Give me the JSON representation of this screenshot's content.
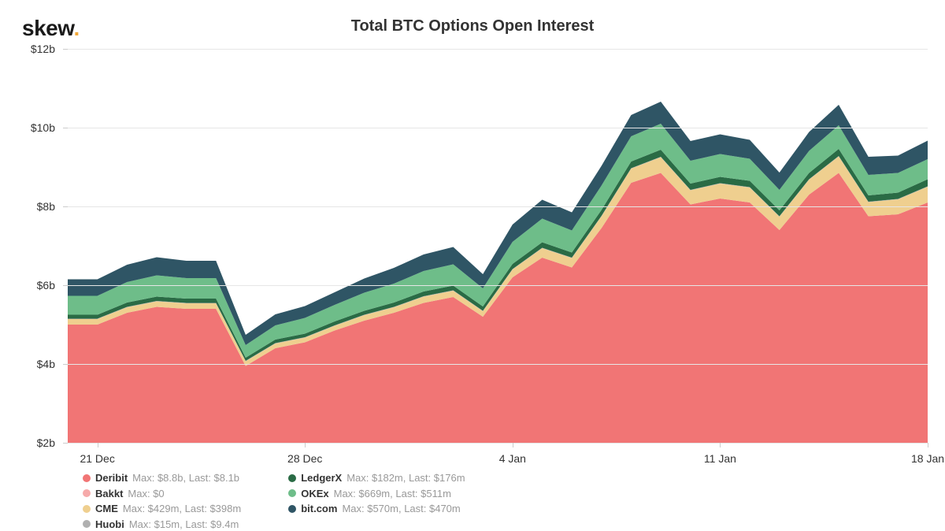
{
  "logo": {
    "text": "skew",
    "dot": "."
  },
  "title": "Total BTC Options Open Interest",
  "chart": {
    "type": "area",
    "background_color": "#ffffff",
    "grid_color": "#e6e6e6",
    "axis_font_size": 14,
    "title_font_size": 20,
    "ylim": [
      2,
      12
    ],
    "ytick_step": 2,
    "yticks": [
      {
        "value": 2,
        "label": "$2b"
      },
      {
        "value": 4,
        "label": "$4b"
      },
      {
        "value": 6,
        "label": "$6b"
      },
      {
        "value": 8,
        "label": "$8b"
      },
      {
        "value": 10,
        "label": "$10b"
      },
      {
        "value": 12,
        "label": "$12b"
      }
    ],
    "n_points": 30,
    "xticks": [
      {
        "idx": 1,
        "label": "21 Dec"
      },
      {
        "idx": 8,
        "label": "28 Dec"
      },
      {
        "idx": 15,
        "label": "4 Jan"
      },
      {
        "idx": 22,
        "label": "11 Jan"
      },
      {
        "idx": 29,
        "label": "18 Jan"
      }
    ],
    "series": [
      {
        "key": "deribit",
        "name": "Deribit",
        "color": "#f17575",
        "values": [
          5.0,
          5.0,
          5.3,
          5.45,
          5.4,
          5.4,
          3.95,
          4.4,
          4.55,
          4.85,
          5.1,
          5.3,
          5.55,
          5.7,
          5.2,
          6.2,
          6.7,
          6.45,
          7.45,
          8.6,
          8.85,
          8.05,
          8.2,
          8.1,
          7.4,
          8.3,
          8.85,
          7.75,
          7.8,
          8.1
        ]
      },
      {
        "key": "bakkt",
        "name": "Bakkt",
        "color": "#f6aaaa",
        "values": [
          0,
          0,
          0,
          0,
          0,
          0,
          0,
          0,
          0,
          0,
          0,
          0,
          0,
          0,
          0,
          0,
          0,
          0,
          0,
          0,
          0,
          0,
          0,
          0,
          0,
          0,
          0,
          0,
          0,
          0
        ]
      },
      {
        "key": "cme",
        "name": "CME",
        "color": "#efcf8f",
        "values": [
          0.14,
          0.14,
          0.14,
          0.14,
          0.14,
          0.14,
          0.12,
          0.12,
          0.12,
          0.12,
          0.14,
          0.14,
          0.16,
          0.16,
          0.14,
          0.2,
          0.24,
          0.24,
          0.3,
          0.36,
          0.4,
          0.36,
          0.38,
          0.38,
          0.34,
          0.38,
          0.42,
          0.36,
          0.38,
          0.4
        ]
      },
      {
        "key": "huobi",
        "name": "Huobi",
        "color": "#b0b0b0",
        "values": [
          0.01,
          0.01,
          0.01,
          0.01,
          0.01,
          0.01,
          0.01,
          0.01,
          0.01,
          0.01,
          0.01,
          0.01,
          0.01,
          0.01,
          0.01,
          0.01,
          0.01,
          0.01,
          0.01,
          0.01,
          0.01,
          0.01,
          0.01,
          0.01,
          0.01,
          0.01,
          0.01,
          0.01,
          0.01,
          0.01
        ]
      },
      {
        "key": "ledgerx",
        "name": "LedgerX",
        "color": "#2a6b45",
        "values": [
          0.1,
          0.1,
          0.11,
          0.11,
          0.11,
          0.11,
          0.08,
          0.09,
          0.09,
          0.1,
          0.1,
          0.11,
          0.12,
          0.12,
          0.11,
          0.13,
          0.14,
          0.13,
          0.15,
          0.17,
          0.18,
          0.16,
          0.16,
          0.16,
          0.15,
          0.16,
          0.18,
          0.16,
          0.16,
          0.18
        ]
      },
      {
        "key": "okex",
        "name": "OKEx",
        "color": "#6ebd89",
        "values": [
          0.48,
          0.48,
          0.52,
          0.54,
          0.52,
          0.52,
          0.32,
          0.36,
          0.4,
          0.42,
          0.46,
          0.48,
          0.52,
          0.54,
          0.46,
          0.56,
          0.6,
          0.56,
          0.62,
          0.64,
          0.66,
          0.58,
          0.58,
          0.56,
          0.52,
          0.56,
          0.6,
          0.52,
          0.5,
          0.51
        ]
      },
      {
        "key": "bitcom",
        "name": "bit.com",
        "color": "#2f5565",
        "values": [
          0.42,
          0.42,
          0.44,
          0.46,
          0.44,
          0.44,
          0.26,
          0.28,
          0.3,
          0.32,
          0.36,
          0.4,
          0.42,
          0.44,
          0.36,
          0.44,
          0.48,
          0.46,
          0.5,
          0.54,
          0.56,
          0.5,
          0.5,
          0.48,
          0.44,
          0.48,
          0.52,
          0.46,
          0.44,
          0.47
        ]
      }
    ]
  },
  "legend": {
    "name_color": "#333333",
    "stats_color": "#999999",
    "font_size": 13,
    "columns": [
      [
        {
          "key": "deribit",
          "name": "Deribit",
          "color": "#f17575",
          "stats": "Max: $8.8b, Last: $8.1b"
        },
        {
          "key": "bakkt",
          "name": "Bakkt",
          "color": "#f6aaaa",
          "stats": "Max: $0"
        },
        {
          "key": "cme",
          "name": "CME",
          "color": "#efcf8f",
          "stats": "Max: $429m, Last: $398m"
        },
        {
          "key": "huobi",
          "name": "Huobi",
          "color": "#b0b0b0",
          "stats": "Max: $15m, Last: $9.4m"
        }
      ],
      [
        {
          "key": "ledgerx",
          "name": "LedgerX",
          "color": "#2a6b45",
          "stats": "Max: $182m, Last: $176m"
        },
        {
          "key": "okex",
          "name": "OKEx",
          "color": "#6ebd89",
          "stats": "Max: $669m, Last: $511m"
        },
        {
          "key": "bitcom",
          "name": "bit.com",
          "color": "#2f5565",
          "stats": "Max: $570m, Last: $470m"
        }
      ]
    ]
  }
}
